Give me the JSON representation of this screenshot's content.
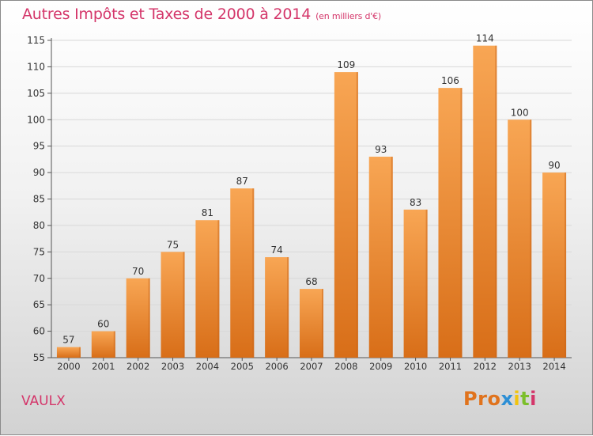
{
  "header": {
    "title": "Autres Impôts et Taxes de 2000 à 2014",
    "unit": "(en milliers d'€)"
  },
  "footer": {
    "place": "VAULX",
    "logo_text": "Proxiti"
  },
  "colors": {
    "title": "#d4366a",
    "bar_top": "#f8a654",
    "bar_bottom": "#d86e18",
    "grid": "#d8d8d8",
    "axis": "#555555",
    "logo_letters": [
      "#e0731d",
      "#e0731d",
      "#e0731d",
      "#2d8fd5",
      "#f1c40f",
      "#7cbf2b",
      "#d4366a"
    ]
  },
  "chart_data": {
    "type": "bar",
    "title": "Autres Impôts et Taxes de 2000 à 2014",
    "subtitle": "(en milliers d'€)",
    "categories": [
      "2000",
      "2001",
      "2002",
      "2003",
      "2004",
      "2005",
      "2006",
      "2007",
      "2008",
      "2009",
      "2010",
      "2011",
      "2012",
      "2013",
      "2014"
    ],
    "values": [
      57,
      60,
      70,
      75,
      81,
      87,
      74,
      68,
      109,
      93,
      83,
      106,
      114,
      100,
      90
    ],
    "ylim": [
      55,
      115
    ],
    "yticks": [
      55,
      60,
      65,
      70,
      75,
      80,
      85,
      90,
      95,
      100,
      105,
      110,
      115
    ],
    "grid": true,
    "data_labels": true
  }
}
